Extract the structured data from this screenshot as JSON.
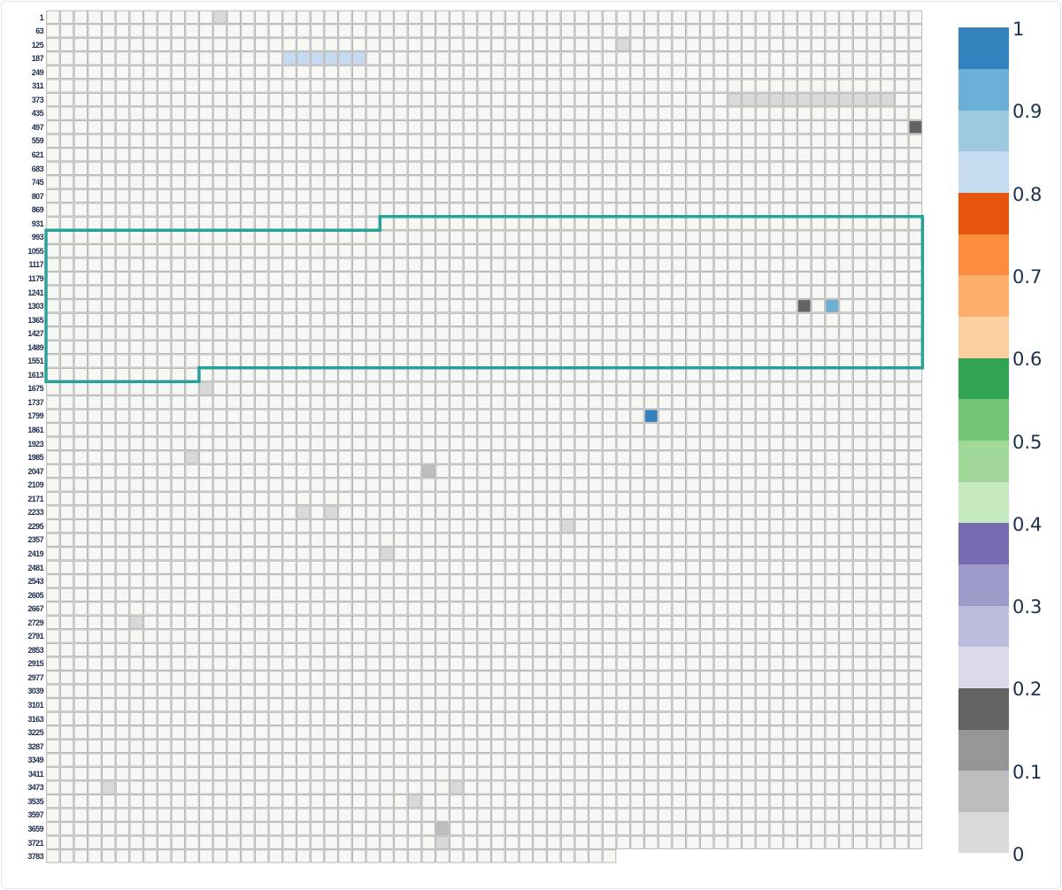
{
  "chart_data": {
    "type": "heatmap",
    "title": "",
    "xlabel": "",
    "ylabel": "",
    "n_columns": 63,
    "n_rows": 62,
    "last_row_columns": 41,
    "row_labels": [
      "1",
      "63",
      "125",
      "187",
      "249",
      "311",
      "373",
      "435",
      "497",
      "559",
      "621",
      "683",
      "745",
      "807",
      "869",
      "931",
      "993",
      "1055",
      "1117",
      "1179",
      "1241",
      "1303",
      "1365",
      "1427",
      "1489",
      "1551",
      "1613",
      "1675",
      "1737",
      "1799",
      "1861",
      "1923",
      "1985",
      "2047",
      "2109",
      "2171",
      "2233",
      "2295",
      "2357",
      "2419",
      "2481",
      "2543",
      "2605",
      "2667",
      "2729",
      "2791",
      "2853",
      "2915",
      "2977",
      "3039",
      "3101",
      "3163",
      "3225",
      "3287",
      "3349",
      "3411",
      "3473",
      "3535",
      "3597",
      "3659",
      "3721",
      "3783"
    ],
    "default_value_note": "blank (no value) cells",
    "cells": [
      {
        "row": 0,
        "col": 12,
        "value": 0.03
      },
      {
        "row": 2,
        "col": 41,
        "value": 0.03
      },
      {
        "row": 3,
        "col": 17,
        "value": 0.82
      },
      {
        "row": 3,
        "col": 18,
        "value": 0.82
      },
      {
        "row": 3,
        "col": 19,
        "value": 0.82
      },
      {
        "row": 3,
        "col": 20,
        "value": 0.82
      },
      {
        "row": 3,
        "col": 21,
        "value": 0.82
      },
      {
        "row": 3,
        "col": 22,
        "value": 0.82
      },
      {
        "row": 6,
        "col": 49,
        "value": 0.03
      },
      {
        "row": 6,
        "col": 50,
        "value": 0.03
      },
      {
        "row": 6,
        "col": 51,
        "value": 0.03
      },
      {
        "row": 6,
        "col": 52,
        "value": 0.03
      },
      {
        "row": 6,
        "col": 53,
        "value": 0.03
      },
      {
        "row": 6,
        "col": 54,
        "value": 0.03
      },
      {
        "row": 6,
        "col": 55,
        "value": 0.03
      },
      {
        "row": 6,
        "col": 56,
        "value": 0.03
      },
      {
        "row": 6,
        "col": 57,
        "value": 0.03
      },
      {
        "row": 6,
        "col": 58,
        "value": 0.03
      },
      {
        "row": 6,
        "col": 59,
        "value": 0.03
      },
      {
        "row": 6,
        "col": 60,
        "value": 0.03
      },
      {
        "row": 8,
        "col": 62,
        "value": 0.18
      },
      {
        "row": 21,
        "col": 54,
        "value": 0.18
      },
      {
        "row": 21,
        "col": 56,
        "value": 0.92
      },
      {
        "row": 27,
        "col": 11,
        "value": 0.03
      },
      {
        "row": 29,
        "col": 43,
        "value": 0.98
      },
      {
        "row": 32,
        "col": 10,
        "value": 0.03
      },
      {
        "row": 33,
        "col": 27,
        "value": 0.07
      },
      {
        "row": 36,
        "col": 18,
        "value": 0.03
      },
      {
        "row": 36,
        "col": 20,
        "value": 0.03
      },
      {
        "row": 37,
        "col": 37,
        "value": 0.03
      },
      {
        "row": 39,
        "col": 24,
        "value": 0.03
      },
      {
        "row": 44,
        "col": 6,
        "value": 0.03
      },
      {
        "row": 56,
        "col": 4,
        "value": 0.03
      },
      {
        "row": 56,
        "col": 29,
        "value": 0.03
      },
      {
        "row": 57,
        "col": 26,
        "value": 0.03
      },
      {
        "row": 59,
        "col": 28,
        "value": 0.07
      },
      {
        "row": 60,
        "col": 28,
        "value": 0.03
      }
    ],
    "highlight_region": {
      "color": "#2aa198",
      "description": "teal outline spanning rows 931-1613",
      "polygon_grid": [
        [
          0,
          16
        ],
        [
          24,
          16
        ],
        [
          24,
          15
        ],
        [
          63,
          15
        ],
        [
          63,
          26
        ],
        [
          11,
          26
        ],
        [
          11,
          27
        ],
        [
          0,
          27
        ]
      ]
    },
    "colorbar": {
      "min": 0,
      "max": 1,
      "ticks": [
        "0",
        "0.1",
        "0.2",
        "0.3",
        "0.4",
        "0.5",
        "0.6",
        "0.7",
        "0.8",
        "0.9",
        "1"
      ],
      "bands": [
        "#d9d9d9",
        "#bdbdbd",
        "#969696",
        "#636363",
        "#dadaeb",
        "#bcbddc",
        "#9e9ac8",
        "#756bb1",
        "#c7e9c0",
        "#a1d99b",
        "#74c476",
        "#31a354",
        "#fdd0a2",
        "#fdae6b",
        "#fd8d3c",
        "#e6550d",
        "#c6dbef",
        "#9ecae1",
        "#6baed6",
        "#3182bd"
      ]
    },
    "grid": true,
    "legend_position": "right"
  },
  "colors": {
    "cell_empty": "#f7f7f4",
    "cell_border": "#b4b4b4",
    "label_text": "#1d2f4f"
  }
}
